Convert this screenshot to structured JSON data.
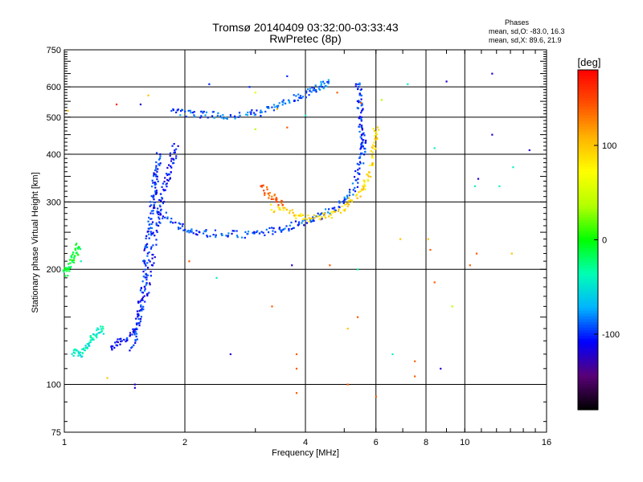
{
  "chart_data": {
    "type": "scatter",
    "title_line1": "Tromsø 20140409 03:32:00-03:33:43",
    "title_line2": "RwPretec (8p)",
    "xlabel": "Frequency [MHz]",
    "ylabel": "Stationary phase Virtual Height [km]",
    "x_scale": "log",
    "y_scale": "log",
    "xlim": [
      1,
      16
    ],
    "ylim": [
      75,
      750
    ],
    "xticks": [
      "1",
      "2",
      "4",
      "6",
      "8",
      "10",
      "16"
    ],
    "xtick_values": [
      1,
      2,
      4,
      6,
      8,
      10,
      16
    ],
    "yticks": [
      "75",
      "100",
      "200",
      "300",
      "400",
      "500",
      "600",
      "750"
    ],
    "ytick_values": [
      75,
      100,
      200,
      300,
      400,
      500,
      600,
      750
    ],
    "grid": true,
    "x_gridlines": [
      2,
      4,
      6,
      8,
      10
    ],
    "y_gridlines": [
      100,
      200,
      300,
      400,
      500,
      600
    ],
    "stats": {
      "heading": "Phases",
      "line1": "mean, sd,O: -83.0, 16.3",
      "line2": "mean, sd,X:  89.6, 21.9"
    },
    "colorbar": {
      "label": "[deg]",
      "range": [
        -180,
        180
      ],
      "ticks": [
        "100",
        "0",
        "-100"
      ],
      "tick_values": [
        100,
        0,
        -100
      ],
      "colors": [
        "#000000",
        "#5a0078",
        "#0000ff",
        "#00b4ff",
        "#00ffb4",
        "#00ff00",
        "#b4ff00",
        "#ffff00",
        "#ffb400",
        "#ff5000",
        "#ff0000"
      ]
    },
    "traces": [
      {
        "name": "",
        "points": [
          [
            1.48,
            125
          ],
          [
            1.52,
            140
          ],
          [
            1.55,
            160
          ],
          [
            1.58,
            185
          ],
          [
            1.6,
            210
          ],
          [
            1.62,
            240
          ],
          [
            1.64,
            270
          ],
          [
            1.66,
            300
          ],
          [
            1.68,
            330
          ],
          [
            1.7,
            360
          ],
          [
            1.72,
            400
          ]
        ],
        "phase": -100
      },
      {
        "name": "",
        "points": [
          [
            1.3,
            125
          ],
          [
            1.4,
            130
          ],
          [
            1.5,
            140
          ],
          [
            1.6,
            170
          ],
          [
            1.65,
            210
          ],
          [
            1.7,
            260
          ],
          [
            1.75,
            300
          ],
          [
            1.8,
            340
          ],
          [
            1.85,
            380
          ],
          [
            1.9,
            420
          ]
        ],
        "phase": -105
      },
      {
        "name": "",
        "points": [
          [
            1.7,
            290
          ],
          [
            1.9,
            260
          ],
          [
            2.1,
            250
          ],
          [
            2.4,
            248
          ],
          [
            2.8,
            247
          ],
          [
            3.2,
            250
          ],
          [
            3.6,
            258
          ],
          [
            4.0,
            266
          ],
          [
            4.5,
            280
          ],
          [
            5.0,
            300
          ],
          [
            5.3,
            330
          ],
          [
            5.5,
            380
          ],
          [
            5.6,
            430
          ]
        ],
        "phase": -95
      },
      {
        "name": "",
        "points": [
          [
            3.3,
            290
          ],
          [
            3.7,
            280
          ],
          [
            4.1,
            272
          ],
          [
            4.6,
            278
          ],
          [
            5.1,
            295
          ],
          [
            5.5,
            320
          ],
          [
            5.8,
            360
          ],
          [
            5.95,
            420
          ],
          [
            6.0,
            480
          ]
        ],
        "phase": 90
      },
      {
        "name": "",
        "points": [
          [
            3.1,
            330
          ],
          [
            3.3,
            310
          ],
          [
            3.5,
            295
          ]
        ],
        "phase": 140
      },
      {
        "name": "",
        "points": [
          [
            1.85,
            515
          ],
          [
            2.1,
            510
          ],
          [
            2.4,
            505
          ],
          [
            2.8,
            505
          ],
          [
            3.2,
            520
          ],
          [
            3.6,
            545
          ],
          [
            4.0,
            575
          ],
          [
            4.3,
            600
          ],
          [
            4.6,
            620
          ]
        ],
        "phase": -90
      },
      {
        "name": "",
        "points": [
          [
            5.4,
            620
          ],
          [
            5.45,
            560
          ],
          [
            5.5,
            500
          ],
          [
            5.55,
            450
          ],
          [
            5.6,
            410
          ]
        ],
        "phase": -100
      },
      {
        "name": "",
        "points": [
          [
            1.0,
            195
          ],
          [
            1.03,
            205
          ],
          [
            1.06,
            220
          ],
          [
            1.09,
            230
          ]
        ],
        "phase": -10
      },
      {
        "name": "",
        "points": [
          [
            1.05,
            122
          ],
          [
            1.1,
            120
          ],
          [
            1.15,
            128
          ],
          [
            1.2,
            135
          ],
          [
            1.25,
            140
          ]
        ],
        "phase": -45
      }
    ],
    "scattered_points": [
      [
        2.3,
        610,
        -100
      ],
      [
        2.9,
        600,
        -100
      ],
      [
        3.6,
        640,
        -100
      ],
      [
        6.2,
        555,
        40
      ],
      [
        7.2,
        610,
        -40
      ],
      [
        9.0,
        620,
        -120
      ],
      [
        11.7,
        650,
        -120
      ],
      [
        11.7,
        450,
        -120
      ],
      [
        8.4,
        415,
        -40
      ],
      [
        14.5,
        410,
        -120
      ],
      [
        13.2,
        370,
        -40
      ],
      [
        10.8,
        345,
        -120
      ],
      [
        10.6,
        330,
        -40
      ],
      [
        12.2,
        330,
        -40
      ],
      [
        6.9,
        240,
        100
      ],
      [
        8.1,
        240,
        100
      ],
      [
        8.2,
        225,
        140
      ],
      [
        13.1,
        220,
        100
      ],
      [
        10.7,
        220,
        140
      ],
      [
        10.3,
        205,
        140
      ],
      [
        3.7,
        205,
        -120
      ],
      [
        4.6,
        205,
        140
      ],
      [
        2.05,
        210,
        140
      ],
      [
        2.4,
        190,
        -40
      ],
      [
        5.4,
        200,
        -40
      ],
      [
        8.4,
        185,
        140
      ],
      [
        9.3,
        160,
        40
      ],
      [
        3.3,
        160,
        140
      ],
      [
        5.4,
        150,
        140
      ],
      [
        5.1,
        140,
        100
      ],
      [
        2.6,
        120,
        -120
      ],
      [
        3.8,
        120,
        140
      ],
      [
        3.8,
        110,
        140
      ],
      [
        6.6,
        120,
        -40
      ],
      [
        7.5,
        115,
        140
      ],
      [
        7.5,
        105,
        140
      ],
      [
        8.7,
        110,
        -120
      ],
      [
        5.1,
        100,
        140
      ],
      [
        3.8,
        95,
        140
      ],
      [
        6.0,
        93,
        140
      ],
      [
        1.5,
        100,
        -120
      ],
      [
        1.5,
        98,
        -120
      ],
      [
        1.55,
        540,
        -120
      ],
      [
        1.35,
        540,
        160
      ],
      [
        1.02,
        520,
        100
      ],
      [
        1.62,
        570,
        100
      ],
      [
        3.0,
        580,
        60
      ],
      [
        4.8,
        580,
        140
      ],
      [
        5.5,
        545,
        140
      ],
      [
        3.4,
        525,
        100
      ],
      [
        3.6,
        470,
        140
      ],
      [
        4.0,
        505,
        -40
      ],
      [
        3.0,
        465,
        40
      ],
      [
        1.28,
        104,
        100
      ],
      [
        1.1,
        210,
        -40
      ]
    ]
  }
}
